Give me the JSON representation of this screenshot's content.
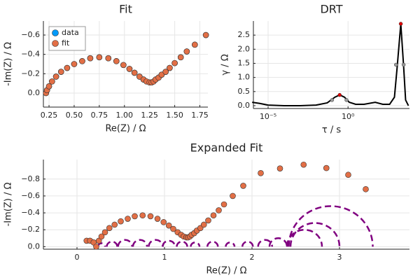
{
  "chart_data": [
    {
      "type": "scatter",
      "title": "Fit",
      "x_label": "Re(Z) / Ω",
      "y_label": "-Im(Z) / Ω",
      "x": [
        0.22,
        0.23,
        0.25,
        0.28,
        0.32,
        0.37,
        0.43,
        0.5,
        0.58,
        0.66,
        0.75,
        0.84,
        0.92,
        0.99,
        1.05,
        1.1,
        1.15,
        1.19,
        1.22,
        1.25,
        1.27,
        1.29,
        1.31,
        1.34,
        1.37,
        1.41,
        1.45,
        1.5,
        1.56,
        1.62,
        1.7,
        1.81
      ],
      "series": [
        {
          "name": "data",
          "color": "#009afa",
          "values": [
            0.0,
            -0.03,
            -0.07,
            -0.12,
            -0.17,
            -0.22,
            -0.26,
            -0.3,
            -0.33,
            -0.36,
            -0.37,
            -0.36,
            -0.33,
            -0.29,
            -0.25,
            -0.21,
            -0.17,
            -0.14,
            -0.12,
            -0.11,
            -0.11,
            -0.12,
            -0.14,
            -0.16,
            -0.19,
            -0.22,
            -0.26,
            -0.31,
            -0.37,
            -0.43,
            -0.5,
            -0.6
          ]
        },
        {
          "name": "fit",
          "color": "#e26f46",
          "values": [
            0.0,
            -0.03,
            -0.07,
            -0.12,
            -0.17,
            -0.22,
            -0.26,
            -0.3,
            -0.33,
            -0.36,
            -0.37,
            -0.36,
            -0.33,
            -0.29,
            -0.25,
            -0.21,
            -0.17,
            -0.14,
            -0.12,
            -0.11,
            -0.11,
            -0.12,
            -0.14,
            -0.16,
            -0.19,
            -0.22,
            -0.26,
            -0.31,
            -0.37,
            -0.43,
            -0.5,
            -0.6
          ]
        }
      ],
      "xlim": [
        0.194,
        1.83
      ],
      "xticks": [
        0.25,
        {
          "value": 0.5,
          "label": "0.50"
        },
        0.75,
        {
          "value": 1.0,
          "label": "1.00"
        },
        1.25,
        {
          "value": 1.5,
          "label": "1.50"
        },
        1.75
      ],
      "ylim": [
        0.145,
        -0.745
      ],
      "yticks": [
        {
          "value": 0,
          "label": "0.0"
        },
        {
          "value": -0.2,
          "label": "−0.2"
        },
        {
          "value": -0.4,
          "label": "−0.4"
        },
        {
          "value": -0.6,
          "label": "−0.6"
        }
      ],
      "grid": true,
      "legend": "top-left"
    },
    {
      "type": "line",
      "title": "DRT",
      "x_label": "τ / s",
      "y_label": "γ / Ω",
      "log_x": true,
      "x": [
        1e-06,
        3e-06,
        1e-05,
        0.0001,
        0.001,
        0.01,
        0.05,
        0.15,
        0.3,
        0.6,
        1.2,
        3,
        10,
        50,
        150,
        400,
        800,
        1200,
        2000,
        3000,
        4000,
        6000
      ],
      "values": [
        0.12,
        0.08,
        0.02,
        0.0,
        0.0,
        0.02,
        0.1,
        0.3,
        0.38,
        0.3,
        0.12,
        0.05,
        0.05,
        0.12,
        0.05,
        0.05,
        0.3,
        1.4,
        2.9,
        1.4,
        0.2,
        0.0
      ],
      "color": "#000000",
      "peaks": {
        "x": [
          0.3,
          2000
        ],
        "values": [
          0.38,
          2.9
        ],
        "color": "#e00000"
      },
      "half_width": {
        "x": [
          0.1,
          0.8,
          1000,
          3000
        ],
        "values": [
          0.2,
          0.2,
          1.45,
          1.45
        ],
        "color": "#999999"
      },
      "xlim": [
        1.2e-06,
        7000
      ],
      "xticks": [
        {
          "value": 1e-05,
          "label": "10⁻⁵"
        },
        {
          "value": 1,
          "label": "10⁰"
        }
      ],
      "ylim": [
        -0.1,
        3.0
      ],
      "yticks": [
        {
          "value": 0,
          "label": "0.0"
        },
        0.5,
        {
          "value": 1,
          "label": "1.0"
        },
        1.5,
        {
          "value": 2,
          "label": "2.0"
        },
        2.5
      ],
      "grid": true
    },
    {
      "type": "scatter",
      "title": "Expanded Fit",
      "x_label": "Re(Z) / Ω",
      "y_label": "-Im(Z) / Ω",
      "x": [
        0.11,
        0.15,
        0.19,
        0.22,
        0.25,
        0.28,
        0.32,
        0.37,
        0.43,
        0.5,
        0.58,
        0.66,
        0.75,
        0.84,
        0.92,
        0.99,
        1.05,
        1.1,
        1.15,
        1.19,
        1.22,
        1.25,
        1.27,
        1.29,
        1.31,
        1.34,
        1.37,
        1.41,
        1.45,
        1.5,
        1.56,
        1.62,
        1.68,
        1.78,
        1.9,
        2.1,
        2.32,
        2.59,
        2.85,
        3.1,
        3.3
      ],
      "series": [
        {
          "name": "fit",
          "color": "#e26f46",
          "values": [
            -0.07,
            -0.07,
            -0.05,
            0.0,
            -0.07,
            -0.12,
            -0.17,
            -0.22,
            -0.26,
            -0.3,
            -0.33,
            -0.36,
            -0.37,
            -0.36,
            -0.33,
            -0.29,
            -0.25,
            -0.21,
            -0.17,
            -0.14,
            -0.12,
            -0.11,
            -0.11,
            -0.12,
            -0.14,
            -0.16,
            -0.19,
            -0.22,
            -0.26,
            -0.31,
            -0.37,
            -0.43,
            -0.5,
            -0.6,
            -0.72,
            -0.87,
            -0.925,
            -0.97,
            -0.93,
            -0.85,
            -0.68
          ]
        }
      ],
      "arcs": {
        "color": "#800080",
        "centers": [
          0.28,
          0.4,
          0.55,
          0.72,
          0.9,
          1.05,
          1.2,
          1.35,
          1.55,
          1.75,
          1.95,
          2.15,
          2.3,
          2.6,
          2.72,
          2.9
        ],
        "radii": [
          0.04,
          0.06,
          0.08,
          0.08,
          0.08,
          0.07,
          0.06,
          0.05,
          0.06,
          0.05,
          0.06,
          0.08,
          0.1,
          0.2,
          0.28,
          0.48
        ]
      },
      "xlim": [
        -0.384,
        3.8
      ],
      "xticks": [
        0,
        1,
        2,
        3
      ],
      "ylim": [
        0.03,
        -1.03
      ],
      "yticks": [
        {
          "value": 0,
          "label": "0.0"
        },
        {
          "value": -0.2,
          "label": "−0.2"
        },
        {
          "value": -0.4,
          "label": "−0.4"
        },
        {
          "value": -0.6,
          "label": "−0.6"
        },
        {
          "value": -0.8,
          "label": "−0.8"
        }
      ],
      "grid": true
    }
  ]
}
